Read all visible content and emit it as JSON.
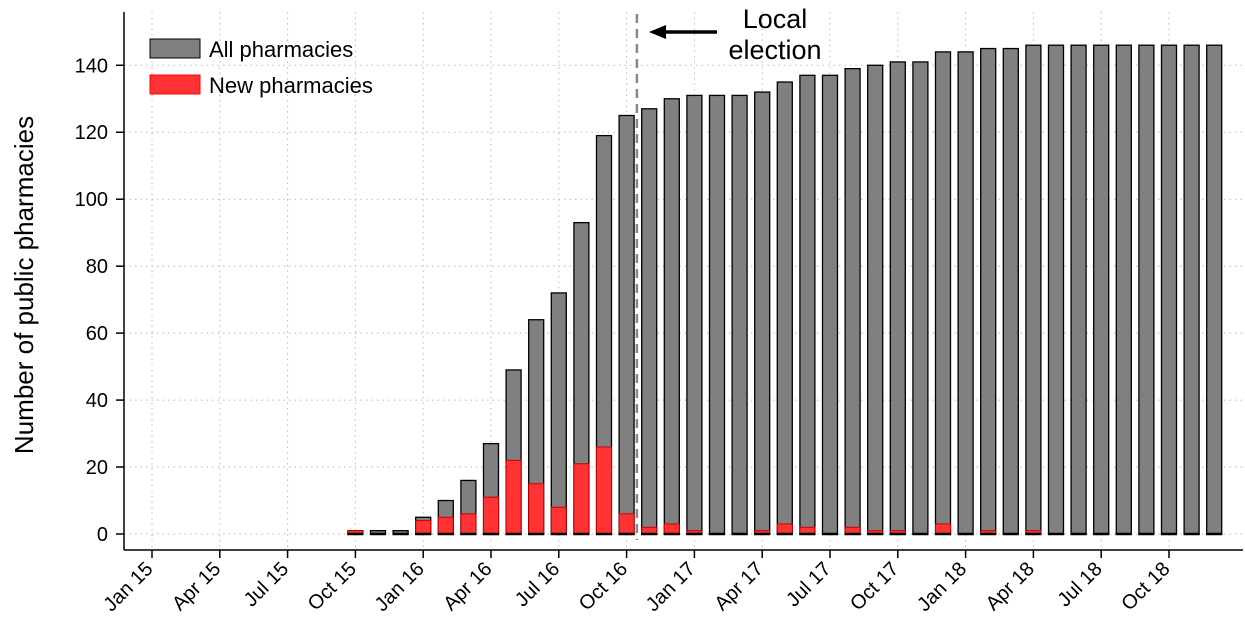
{
  "chart_data": {
    "type": "bar",
    "ylabel": "Number of public pharmacies",
    "xlabel": "",
    "ylim": [
      -5,
      155
    ],
    "yticks": [
      0,
      20,
      40,
      60,
      80,
      100,
      120,
      140
    ],
    "x_months": [
      "2015-01",
      "2015-02",
      "2015-03",
      "2015-04",
      "2015-05",
      "2015-06",
      "2015-07",
      "2015-08",
      "2015-09",
      "2015-10",
      "2015-11",
      "2015-12",
      "2016-01",
      "2016-02",
      "2016-03",
      "2016-04",
      "2016-05",
      "2016-06",
      "2016-07",
      "2016-08",
      "2016-09",
      "2016-10",
      "2016-11",
      "2016-12",
      "2017-01",
      "2017-02",
      "2017-03",
      "2017-04",
      "2017-05",
      "2017-06",
      "2017-07",
      "2017-08",
      "2017-09",
      "2017-10",
      "2017-11",
      "2017-12",
      "2018-01",
      "2018-02",
      "2018-03",
      "2018-04",
      "2018-05",
      "2018-06",
      "2018-07",
      "2018-08",
      "2018-09",
      "2018-10",
      "2018-11",
      "2018-12"
    ],
    "xtick_labels": [
      "Jan 15",
      "Apr 15",
      "Jul 15",
      "Oct 15",
      "Jan 16",
      "Apr 16",
      "Jul 16",
      "Oct 16",
      "Jan 17",
      "Apr 17",
      "Jul 17",
      "Oct 17",
      "Jan 18",
      "Apr 18",
      "Jul 18",
      "Oct 18"
    ],
    "series": [
      {
        "name": "All pharmacies",
        "color": "#808080",
        "values": [
          null,
          null,
          null,
          null,
          null,
          null,
          null,
          null,
          null,
          1,
          1,
          1,
          5,
          10,
          16,
          27,
          49,
          64,
          72,
          93,
          119,
          125,
          127,
          130,
          131,
          131,
          131,
          132,
          135,
          137,
          137,
          139,
          140,
          141,
          141,
          144,
          144,
          145,
          145,
          146,
          146,
          146,
          146,
          146,
          146,
          146,
          146,
          146
        ]
      },
      {
        "name": "New pharmacies",
        "color": "#ff3333",
        "values": [
          null,
          null,
          null,
          null,
          null,
          null,
          null,
          null,
          null,
          1,
          0,
          0,
          4,
          5,
          6,
          11,
          22,
          15,
          8,
          21,
          26,
          6,
          2,
          3,
          1,
          0,
          0,
          1,
          3,
          2,
          0,
          2,
          1,
          1,
          0,
          3,
          0,
          1,
          0,
          1,
          0,
          0,
          0,
          0,
          0,
          0,
          0,
          0
        ]
      }
    ],
    "legend_position": "top-left",
    "grid": true,
    "annotation": {
      "text_line1": "Local",
      "text_line2": "election",
      "x_month": "2016-11"
    }
  }
}
